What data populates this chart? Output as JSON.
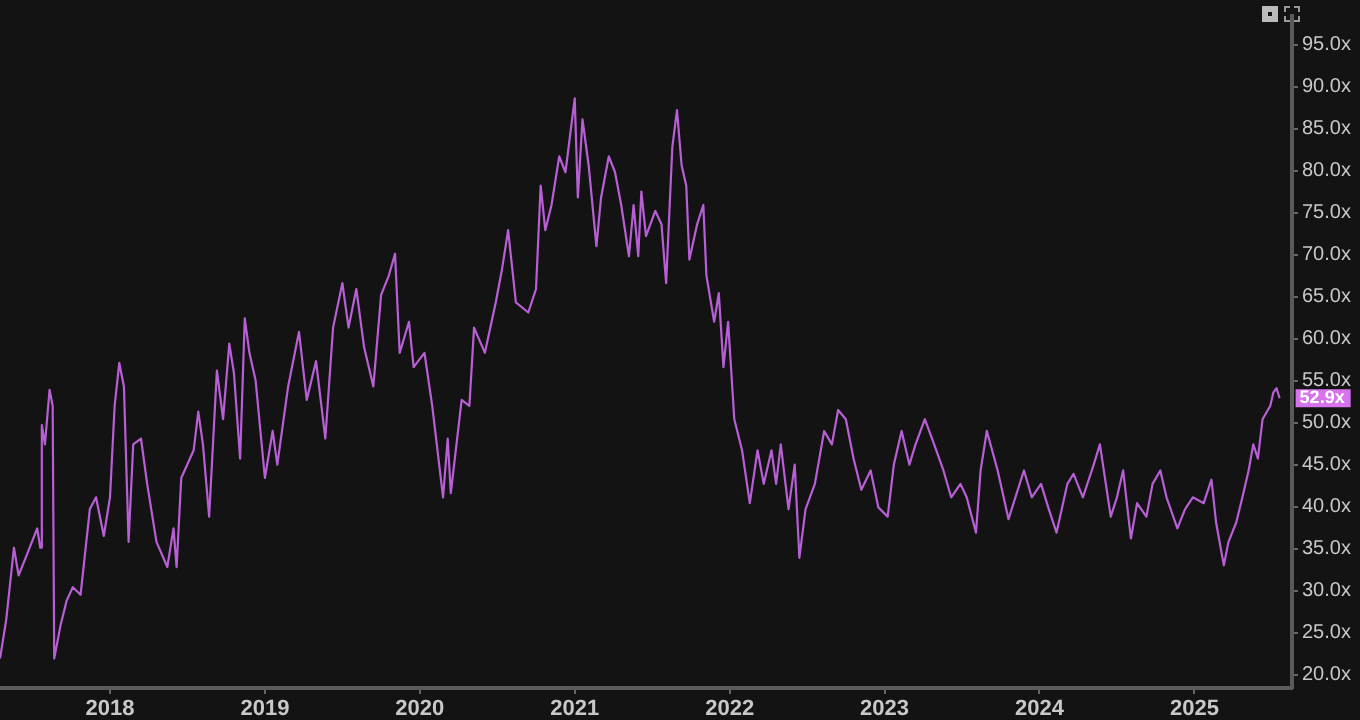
{
  "chart_data": {
    "type": "line",
    "legend": false,
    "grid": false,
    "marker": "none",
    "line_style": "solid",
    "xlim": [
      2017.29,
      2025.63
    ],
    "xticks": [
      2018,
      2019,
      2020,
      2021,
      2022,
      2023,
      2024,
      2025
    ],
    "ylim": [
      18.4,
      98.4
    ],
    "yticks": [
      {
        "value": 20,
        "label": "20.0x"
      },
      {
        "value": 25,
        "label": "25.0x"
      },
      {
        "value": 30,
        "label": "30.0x"
      },
      {
        "value": 35,
        "label": "35.0x"
      },
      {
        "value": 40,
        "label": "40.0x"
      },
      {
        "value": 45,
        "label": "45.0x"
      },
      {
        "value": 50,
        "label": "50.0x"
      },
      {
        "value": 55,
        "label": "55.0x"
      },
      {
        "value": 60,
        "label": "60.0x"
      },
      {
        "value": 65,
        "label": "65.0x"
      },
      {
        "value": 70,
        "label": "70.0x"
      },
      {
        "value": 75,
        "label": "75.0x"
      },
      {
        "value": 80,
        "label": "80.0x"
      },
      {
        "value": 85,
        "label": "85.0x"
      },
      {
        "value": 90,
        "label": "90.0x"
      },
      {
        "value": 95,
        "label": "95.0x"
      }
    ],
    "annotations": [
      {
        "text": "52.9x",
        "x": 2025.55,
        "y": 52.9
      }
    ],
    "series": [
      {
        "color": "#b85fd6",
        "x": [
          2017.29,
          2017.33,
          2017.38,
          2017.41,
          2017.46,
          2017.53,
          2017.55,
          2017.56,
          2017.58,
          2017.61,
          2017.63,
          2017.64,
          2017.68,
          2017.72,
          2017.76,
          2017.81,
          2017.87,
          2017.91,
          2017.96,
          2018.0,
          2018.03,
          2018.06,
          2018.09,
          2018.12,
          2018.15,
          2018.2,
          2018.24,
          2018.3,
          2018.37,
          2018.41,
          2018.43,
          2018.46,
          2018.54,
          2018.57,
          2018.6,
          2018.64,
          2018.69,
          2018.73,
          2018.77,
          2018.8,
          2018.84,
          2018.87,
          2018.9,
          2018.94,
          2019.0,
          2019.05,
          2019.08,
          2019.15,
          2019.22,
          2019.27,
          2019.33,
          2019.39,
          2019.44,
          2019.5,
          2019.54,
          2019.59,
          2019.64,
          2019.7,
          2019.75,
          2019.8,
          2019.84,
          2019.87,
          2019.93,
          2019.96,
          2020.03,
          2020.08,
          2020.15,
          2020.18,
          2020.2,
          2020.27,
          2020.32,
          2020.35,
          2020.42,
          2020.49,
          2020.53,
          2020.57,
          2020.62,
          2020.7,
          2020.75,
          2020.78,
          2020.81,
          2020.85,
          2020.9,
          2020.94,
          2021.0,
          2021.02,
          2021.05,
          2021.09,
          2021.14,
          2021.17,
          2021.22,
          2021.26,
          2021.3,
          2021.35,
          2021.38,
          2021.41,
          2021.43,
          2021.46,
          2021.52,
          2021.56,
          2021.59,
          2021.63,
          2021.66,
          2021.69,
          2021.72,
          2021.74,
          2021.79,
          2021.83,
          2021.85,
          2021.9,
          2021.93,
          2021.96,
          2021.99,
          2022.03,
          2022.08,
          2022.13,
          2022.18,
          2022.22,
          2022.27,
          2022.3,
          2022.33,
          2022.38,
          2022.42,
          2022.45,
          2022.49,
          2022.55,
          2022.61,
          2022.66,
          2022.7,
          2022.75,
          2022.8,
          2022.85,
          2022.91,
          2022.96,
          2023.02,
          2023.06,
          2023.11,
          2023.16,
          2023.2,
          2023.26,
          2023.32,
          2023.38,
          2023.43,
          2023.49,
          2023.53,
          2023.59,
          2023.62,
          2023.66,
          2023.73,
          2023.8,
          2023.86,
          2023.9,
          2023.95,
          2024.01,
          2024.06,
          2024.11,
          2024.18,
          2024.22,
          2024.28,
          2024.35,
          2024.39,
          2024.46,
          2024.5,
          2024.54,
          2024.59,
          2024.63,
          2024.69,
          2024.73,
          2024.78,
          2024.82,
          2024.89,
          2024.94,
          2024.99,
          2025.06,
          2025.11,
          2025.14,
          2025.19,
          2025.22,
          2025.27,
          2025.31,
          2025.35,
          2025.38,
          2025.41,
          2025.44,
          2025.49,
          2025.51,
          2025.53,
          2025.55
        ],
        "values": [
          21.9,
          26.5,
          35.1,
          31.8,
          34.1,
          37.4,
          35.1,
          49.7,
          47.4,
          53.9,
          52.0,
          21.9,
          25.8,
          28.8,
          30.4,
          29.5,
          39.7,
          41.1,
          36.5,
          41.1,
          52.0,
          57.1,
          54.3,
          35.8,
          47.4,
          48.1,
          42.7,
          35.8,
          32.8,
          37.4,
          32.8,
          43.4,
          46.7,
          51.3,
          47.4,
          38.8,
          56.2,
          50.4,
          59.4,
          55.9,
          45.7,
          62.4,
          58.3,
          55.0,
          43.4,
          49.0,
          45.0,
          54.3,
          60.8,
          52.7,
          57.3,
          48.1,
          61.3,
          66.6,
          61.3,
          65.9,
          59.0,
          54.3,
          65.2,
          67.5,
          70.1,
          58.3,
          62.0,
          56.6,
          58.3,
          52.0,
          41.1,
          48.1,
          41.6,
          52.7,
          52.0,
          61.3,
          58.3,
          64.3,
          68.2,
          72.9,
          64.3,
          63.1,
          65.9,
          78.2,
          72.9,
          75.9,
          81.7,
          79.8,
          88.6,
          76.8,
          86.1,
          80.6,
          71.0,
          76.8,
          81.7,
          79.8,
          75.9,
          69.8,
          75.9,
          69.8,
          77.5,
          72.2,
          75.2,
          73.6,
          66.6,
          82.8,
          87.2,
          80.6,
          78.2,
          69.4,
          73.6,
          75.9,
          67.5,
          62.0,
          65.4,
          56.6,
          62.0,
          50.4,
          46.7,
          40.4,
          46.7,
          42.7,
          46.7,
          42.7,
          47.4,
          39.7,
          45.0,
          33.9,
          39.7,
          42.7,
          49.0,
          47.4,
          51.5,
          50.4,
          45.7,
          42.0,
          44.3,
          39.9,
          38.8,
          45.0,
          49.0,
          45.0,
          47.4,
          50.4,
          47.4,
          44.3,
          41.1,
          42.7,
          41.1,
          36.9,
          44.3,
          49.0,
          44.3,
          38.5,
          42.0,
          44.3,
          41.1,
          42.7,
          39.7,
          36.9,
          42.7,
          43.9,
          41.1,
          45.0,
          47.4,
          38.8,
          41.1,
          44.3,
          36.2,
          40.4,
          38.8,
          42.7,
          44.3,
          41.1,
          37.4,
          39.7,
          41.1,
          40.4,
          43.2,
          38.1,
          33.0,
          35.8,
          38.1,
          41.1,
          44.3,
          47.4,
          45.7,
          50.4,
          52.0,
          53.6,
          54.1,
          52.9
        ]
      }
    ]
  }
}
